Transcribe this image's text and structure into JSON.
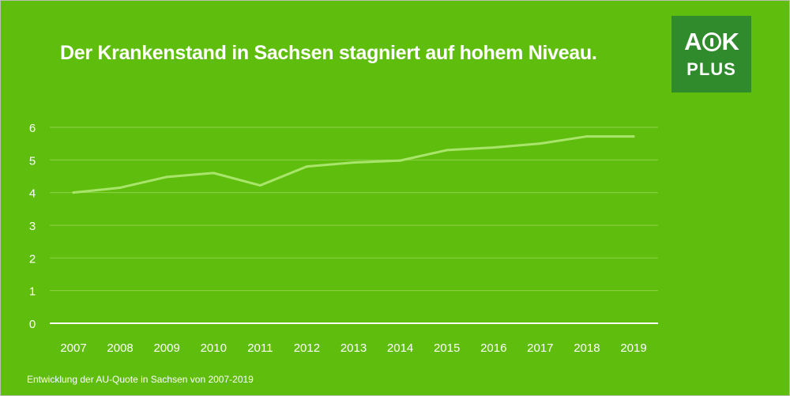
{
  "title": "Der Krankenstand in Sachsen stagniert auf hohem Niveau.",
  "logo": {
    "line1_left": "A",
    "line1_right": "K",
    "line2": "PLUS",
    "icon": "aok-tree-circle-icon"
  },
  "footnote": "Entwicklung der AU-Quote in Sachsen von 2007-2019",
  "colors": {
    "background": "#5fbe0d",
    "line": "#a8e56a",
    "grid": "#8ed24a",
    "axis": "#ffffff",
    "text": "#ffffff",
    "logo_bg": "#2f8b2b"
  },
  "chart_data": {
    "type": "line",
    "title": "Der Krankenstand in Sachsen stagniert auf hohem Niveau.",
    "xlabel": "",
    "ylabel": "",
    "categories": [
      "2007",
      "2008",
      "2009",
      "2010",
      "2011",
      "2012",
      "2013",
      "2014",
      "2015",
      "2016",
      "2017",
      "2018",
      "2019"
    ],
    "series": [
      {
        "values": [
          4.0,
          4.15,
          4.48,
          4.6,
          4.22,
          4.8,
          4.92,
          4.98,
          5.3,
          5.38,
          5.5,
          5.72,
          5.72
        ]
      }
    ],
    "ylim": [
      0,
      6
    ],
    "yticks": [
      "0",
      "1",
      "2",
      "3",
      "4",
      "5",
      "6"
    ],
    "grid": true,
    "legend": "none"
  }
}
